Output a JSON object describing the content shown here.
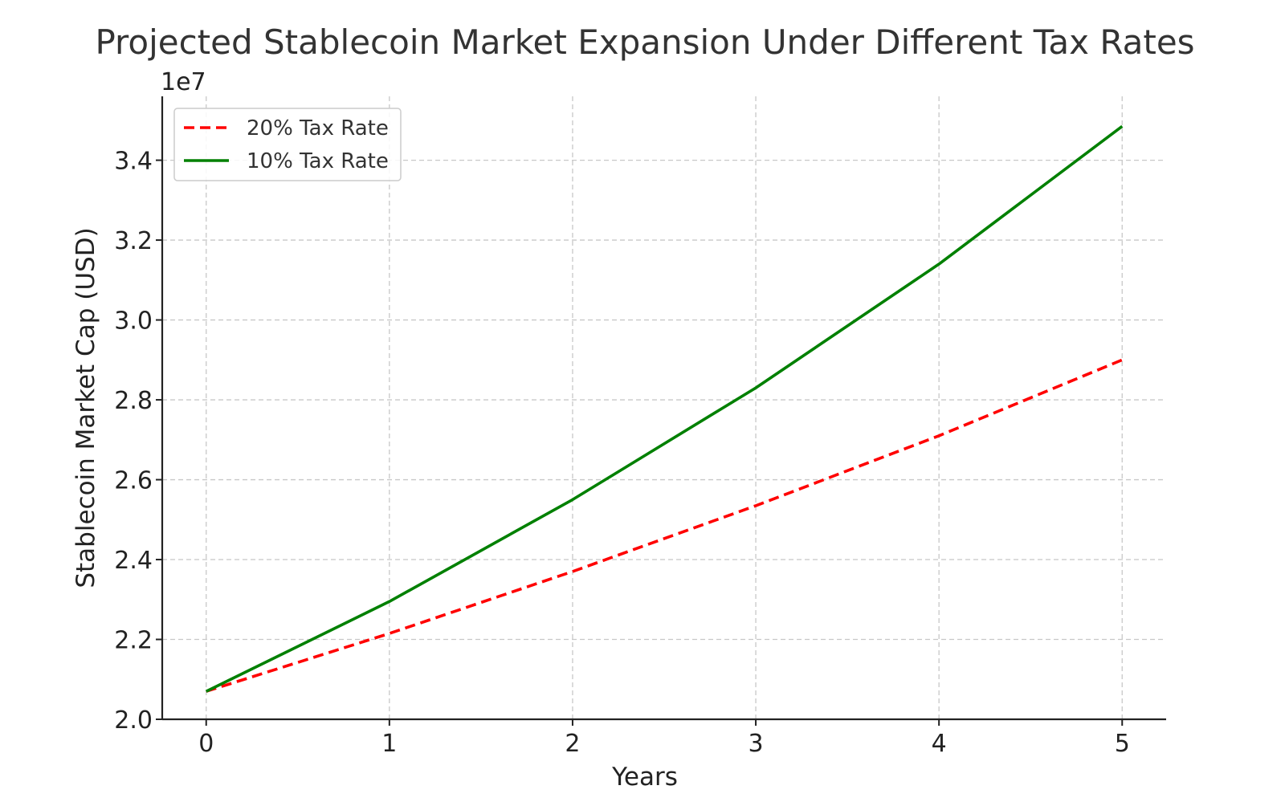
{
  "chart_data": {
    "type": "line",
    "title": "Projected Stablecoin Market Expansion Under Different Tax Rates",
    "xlabel": "Years",
    "ylabel": "Stablecoin Market Cap (USD)",
    "y_offset_label": "1e7",
    "x": [
      0,
      1,
      2,
      3,
      4,
      5
    ],
    "xlim": [
      -0.24,
      5.24
    ],
    "ylim": [
      2.0,
      3.56
    ],
    "y_scale_factor": 10000000,
    "x_ticks": [
      0,
      1,
      2,
      3,
      4,
      5
    ],
    "x_tick_labels": [
      "0",
      "1",
      "2",
      "3",
      "4",
      "5"
    ],
    "y_ticks": [
      2.0,
      2.2,
      2.4,
      2.6,
      2.8,
      3.0,
      3.2,
      3.4
    ],
    "y_tick_labels": [
      "2.0",
      "2.2",
      "2.4",
      "2.6",
      "2.8",
      "3.0",
      "3.2",
      "3.4"
    ],
    "grid": true,
    "legend_position": "top-left",
    "series": [
      {
        "name": "20% Tax Rate",
        "color": "#ff0000",
        "line_style": "dashed",
        "values": [
          20700000,
          22150000,
          23700000,
          25350000,
          27100000,
          29000000
        ]
      },
      {
        "name": "10% Tax Rate",
        "color": "#008000",
        "line_style": "solid",
        "values": [
          20700000,
          22950000,
          25500000,
          28300000,
          31400000,
          34850000
        ]
      }
    ]
  }
}
